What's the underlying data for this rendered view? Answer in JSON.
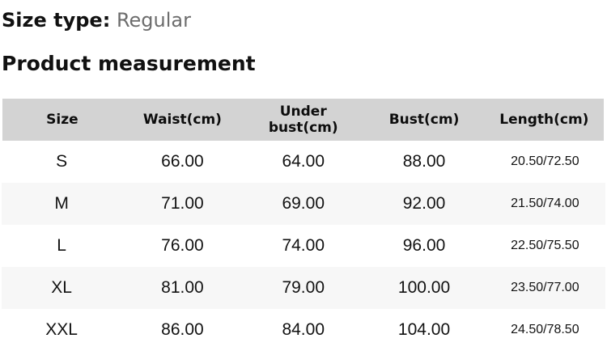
{
  "size_type": {
    "label": "Size type:",
    "value": "Regular"
  },
  "section": {
    "title": "Product measurement"
  },
  "table": {
    "columns": [
      "Size",
      "Waist(cm)",
      "Under bust(cm)",
      "Bust(cm)",
      "Length(cm)"
    ],
    "column_keys": [
      "size",
      "waist",
      "under-bust",
      "bust",
      "length"
    ],
    "rows": [
      [
        "S",
        "66.00",
        "64.00",
        "88.00",
        "20.50/72.50"
      ],
      [
        "M",
        "71.00",
        "69.00",
        "92.00",
        "21.50/74.00"
      ],
      [
        "L",
        "76.00",
        "74.00",
        "96.00",
        "22.50/75.50"
      ],
      [
        "XL",
        "81.00",
        "79.00",
        "100.00",
        "23.50/77.00"
      ],
      [
        "XXL",
        "86.00",
        "84.00",
        "104.00",
        "24.50/78.50"
      ]
    ]
  },
  "colors": {
    "header_bg": "#d3d3d3",
    "stripe_bg": "#f7f7f7",
    "text": "#111111",
    "muted": "#6d6d6d"
  }
}
